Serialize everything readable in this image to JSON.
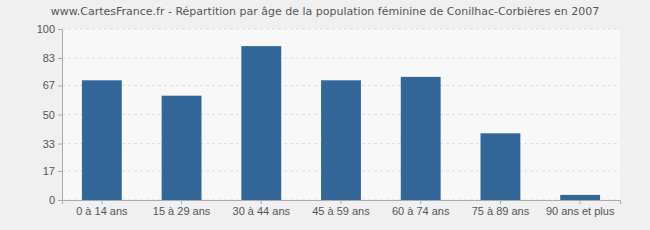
{
  "chart_data": {
    "type": "bar",
    "title": "www.CartesFrance.fr - Répartition par âge de la population féminine de Conilhac-Corbières en 2007",
    "categories": [
      "0 à 14 ans",
      "15 à 29 ans",
      "30 à 44 ans",
      "45 à 59 ans",
      "60 à 74 ans",
      "75 à 89 ans",
      "90 ans et plus"
    ],
    "values": [
      70,
      61,
      90,
      70,
      72,
      39,
      3
    ],
    "color": "#336699",
    "ylim": [
      0,
      100
    ],
    "yticks": [
      0,
      17,
      33,
      50,
      67,
      83,
      100
    ],
    "grid": true
  }
}
